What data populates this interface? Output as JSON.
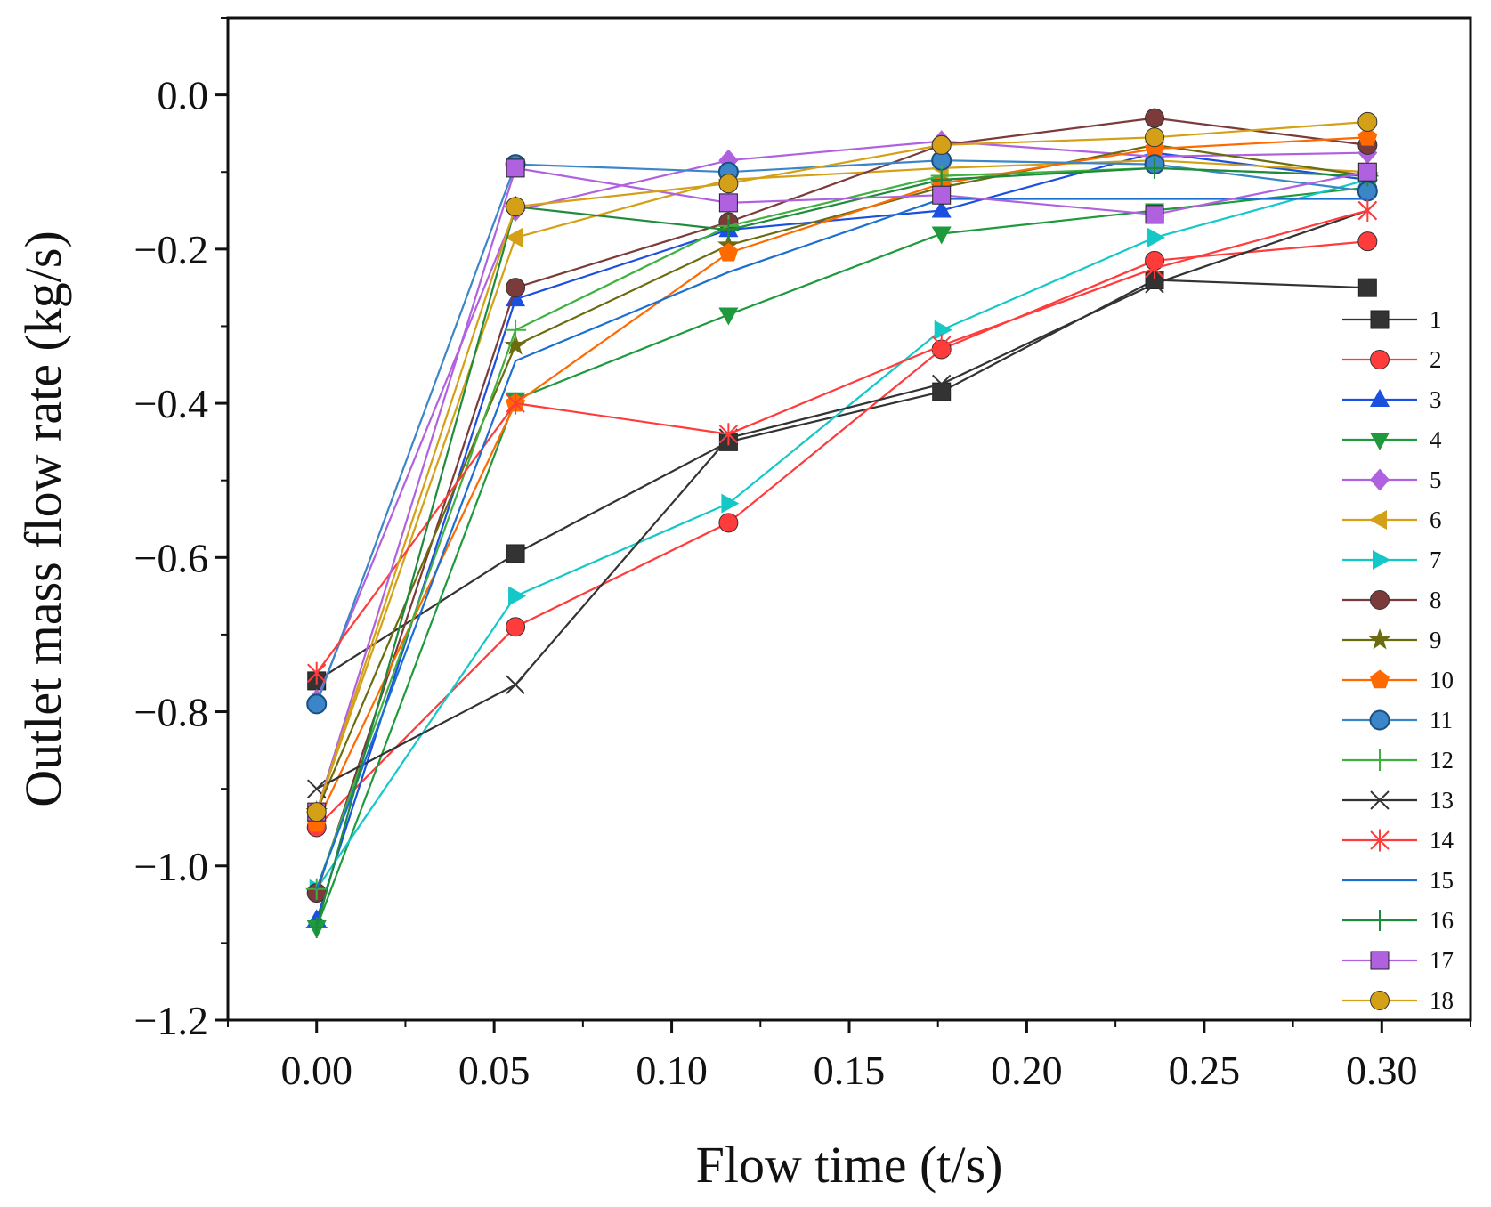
{
  "chart_data": {
    "type": "line",
    "title": "",
    "xlabel": "Flow time (t/s)",
    "ylabel": "Outlet mass flow rate (kg/s)",
    "xlim": [
      -0.025,
      0.325
    ],
    "ylim": [
      -1.2,
      0.1
    ],
    "xticks": [
      0.0,
      0.05,
      0.1,
      0.15,
      0.2,
      0.25,
      0.3
    ],
    "xtick_labels": [
      "0.00",
      "0.05",
      "0.10",
      "0.15",
      "0.20",
      "0.25",
      "0.30"
    ],
    "yticks": [
      0.0,
      -0.2,
      -0.4,
      -0.6,
      -0.8,
      -1.0,
      -1.2
    ],
    "ytick_labels": [
      "0.0",
      "−0.2",
      "−0.4",
      "−0.6",
      "−0.8",
      "−1.0",
      "−1.2"
    ],
    "legend_position": "right",
    "x": [
      0.0,
      0.056,
      0.116,
      0.176,
      0.236,
      0.296
    ],
    "series": [
      {
        "name": "1",
        "marker": "square",
        "color": "#333333",
        "values": [
          -0.76,
          -0.595,
          -0.45,
          -0.385,
          -0.24,
          -0.25
        ]
      },
      {
        "name": "2",
        "marker": "circle",
        "color": "#ff3b3b",
        "values": [
          -0.95,
          -0.69,
          -0.555,
          -0.33,
          -0.215,
          -0.19
        ]
      },
      {
        "name": "3",
        "marker": "triangle-up",
        "color": "#1a4fe0",
        "values": [
          -1.07,
          -0.265,
          -0.175,
          -0.15,
          -0.075,
          -0.11
        ]
      },
      {
        "name": "4",
        "marker": "triangle-down",
        "color": "#1e9a3c",
        "values": [
          -1.08,
          -0.395,
          -0.285,
          -0.18,
          -0.15,
          -0.12
        ]
      },
      {
        "name": "5",
        "marker": "diamond",
        "color": "#b061e0",
        "values": [
          -0.785,
          -0.15,
          -0.085,
          -0.06,
          -0.08,
          -0.075
        ]
      },
      {
        "name": "6",
        "marker": "triangle-left",
        "color": "#d4a017",
        "values": [
          -0.93,
          -0.185,
          -0.11,
          -0.095,
          -0.085,
          -0.1
        ]
      },
      {
        "name": "7",
        "marker": "triangle-right",
        "color": "#14c8c8",
        "values": [
          -1.03,
          -0.65,
          -0.53,
          -0.305,
          -0.185,
          -0.11
        ]
      },
      {
        "name": "8",
        "marker": "circle",
        "color": "#7b3b3b",
        "values": [
          -1.035,
          -0.25,
          -0.165,
          -0.065,
          -0.03,
          -0.065
        ]
      },
      {
        "name": "9",
        "marker": "star",
        "color": "#6b6b10",
        "values": [
          -0.93,
          -0.325,
          -0.195,
          -0.12,
          -0.065,
          -0.105
        ]
      },
      {
        "name": "10",
        "marker": "pentagon",
        "color": "#ff6a00",
        "values": [
          -0.945,
          -0.4,
          -0.205,
          -0.115,
          -0.07,
          -0.055
        ]
      },
      {
        "name": "11",
        "marker": "sphere",
        "color": "#3a86c8",
        "values": [
          -0.79,
          -0.09,
          -0.1,
          -0.085,
          -0.09,
          -0.125
        ]
      },
      {
        "name": "12",
        "marker": "plus",
        "color": "#40b040",
        "values": [
          -1.03,
          -0.305,
          -0.17,
          -0.105,
          -0.095,
          -0.105
        ]
      },
      {
        "name": "13",
        "marker": "x",
        "color": "#333333",
        "values": [
          -0.9,
          -0.765,
          -0.445,
          -0.375,
          -0.245,
          -0.15
        ]
      },
      {
        "name": "14",
        "marker": "asterisk",
        "color": "#ff3b3b",
        "values": [
          -0.75,
          -0.4,
          -0.44,
          -0.325,
          -0.225,
          -0.15
        ]
      },
      {
        "name": "15",
        "marker": "none",
        "color": "#1a6fd0",
        "values": [
          -1.03,
          -0.345,
          -0.23,
          -0.135,
          -0.135,
          -0.135
        ]
      },
      {
        "name": "16",
        "marker": "plus",
        "color": "#1e8a3c",
        "values": [
          -1.08,
          -0.145,
          -0.175,
          -0.11,
          -0.095,
          -0.105
        ]
      },
      {
        "name": "17",
        "marker": "square",
        "color": "#b061e0",
        "values": [
          -0.93,
          -0.095,
          -0.14,
          -0.13,
          -0.155,
          -0.1
        ]
      },
      {
        "name": "18",
        "marker": "circle",
        "color": "#d4a017",
        "values": [
          -0.93,
          -0.145,
          -0.115,
          -0.065,
          -0.055,
          -0.035
        ]
      }
    ]
  }
}
